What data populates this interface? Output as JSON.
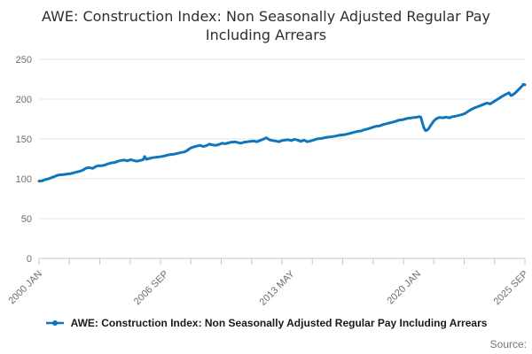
{
  "title": "AWE: Construction Index: Non Seasonally Adjusted Regular Pay Including Arrears",
  "legend": {
    "label": "AWE: Construction Index: Non Seasonally Adjusted Regular Pay Including Arrears"
  },
  "source_label": "Source:",
  "colors": {
    "series_blue": "#1175bc",
    "gridline": "#e6e6e6",
    "axis": "#bcc9d9",
    "tick_text": "#6e6e6e"
  },
  "chart_data": {
    "type": "line",
    "title": "AWE: Construction Index: Non Seasonally Adjusted Regular Pay Including Arrears",
    "xlabel": "",
    "ylabel": "",
    "ylim": [
      0,
      250
    ],
    "y_ticks": [
      0,
      50,
      100,
      150,
      200,
      250
    ],
    "grid": true,
    "legend_position": "bottom",
    "x_axis": {
      "start": "2000 JAN",
      "end": "2025 SEP",
      "total_months": 308,
      "tick_count": 17,
      "labels": [
        "2000 JAN",
        "2006 SEP",
        "2013 MAY",
        "2020 JAN",
        "2025 SEP"
      ],
      "label_months": [
        0,
        80,
        160,
        240,
        308
      ]
    },
    "series": [
      {
        "name": "AWE: Construction Index: Non Seasonally Adjusted Regular Pay Including Arrears",
        "color": "#1175bc",
        "points_format": "[months_since_2000_jan, index_value]",
        "points": [
          [
            0,
            97
          ],
          [
            2,
            97.5
          ],
          [
            4,
            99
          ],
          [
            6,
            100
          ],
          [
            8,
            101.5
          ],
          [
            10,
            103
          ],
          [
            12,
            104.5
          ],
          [
            14,
            105
          ],
          [
            16,
            105.5
          ],
          [
            18,
            106
          ],
          [
            20,
            106.5
          ],
          [
            22,
            107.5
          ],
          [
            24,
            108.5
          ],
          [
            26,
            109.5
          ],
          [
            28,
            111
          ],
          [
            30,
            113.5
          ],
          [
            32,
            114
          ],
          [
            34,
            113
          ],
          [
            36,
            115.5
          ],
          [
            38,
            116.5
          ],
          [
            40,
            116.5
          ],
          [
            42,
            117.5
          ],
          [
            44,
            119
          ],
          [
            46,
            120
          ],
          [
            48,
            120.5
          ],
          [
            50,
            122
          ],
          [
            52,
            123
          ],
          [
            54,
            123.5
          ],
          [
            56,
            122.5
          ],
          [
            58,
            124
          ],
          [
            60,
            123
          ],
          [
            62,
            122
          ],
          [
            64,
            123
          ],
          [
            66,
            124
          ],
          [
            67,
            128
          ],
          [
            68,
            124.5
          ],
          [
            70,
            125.5
          ],
          [
            72,
            126.5
          ],
          [
            74,
            127
          ],
          [
            76,
            127.5
          ],
          [
            78,
            128
          ],
          [
            80,
            129
          ],
          [
            82,
            130
          ],
          [
            84,
            130.5
          ],
          [
            86,
            131
          ],
          [
            88,
            132
          ],
          [
            90,
            133
          ],
          [
            92,
            133.5
          ],
          [
            94,
            135.5
          ],
          [
            96,
            138.5
          ],
          [
            98,
            140
          ],
          [
            100,
            141
          ],
          [
            102,
            142
          ],
          [
            104,
            140.5
          ],
          [
            106,
            141.5
          ],
          [
            108,
            143.5
          ],
          [
            110,
            142.5
          ],
          [
            112,
            142
          ],
          [
            114,
            143
          ],
          [
            116,
            144.5
          ],
          [
            118,
            144
          ],
          [
            120,
            145
          ],
          [
            122,
            146
          ],
          [
            124,
            146.5
          ],
          [
            126,
            145.5
          ],
          [
            128,
            144.5
          ],
          [
            130,
            146
          ],
          [
            132,
            146.5
          ],
          [
            134,
            147
          ],
          [
            136,
            147.5
          ],
          [
            138,
            146.5
          ],
          [
            140,
            148
          ],
          [
            142,
            149.5
          ],
          [
            144,
            151.5
          ],
          [
            146,
            149
          ],
          [
            148,
            148
          ],
          [
            150,
            147.5
          ],
          [
            152,
            146.5
          ],
          [
            154,
            148
          ],
          [
            156,
            148.5
          ],
          [
            158,
            149
          ],
          [
            160,
            148
          ],
          [
            162,
            149.5
          ],
          [
            164,
            148.5
          ],
          [
            166,
            147
          ],
          [
            168,
            148.5
          ],
          [
            170,
            146.5
          ],
          [
            172,
            147.5
          ],
          [
            174,
            148.5
          ],
          [
            176,
            150
          ],
          [
            178,
            150.5
          ],
          [
            180,
            151
          ],
          [
            182,
            152
          ],
          [
            184,
            152.5
          ],
          [
            186,
            153
          ],
          [
            188,
            153.5
          ],
          [
            190,
            154.5
          ],
          [
            192,
            155
          ],
          [
            194,
            155.5
          ],
          [
            196,
            156.5
          ],
          [
            198,
            157.5
          ],
          [
            200,
            158.5
          ],
          [
            202,
            159.5
          ],
          [
            204,
            160
          ],
          [
            206,
            161.5
          ],
          [
            208,
            162.5
          ],
          [
            210,
            163.5
          ],
          [
            212,
            165
          ],
          [
            214,
            166
          ],
          [
            216,
            166.5
          ],
          [
            218,
            168
          ],
          [
            220,
            169
          ],
          [
            222,
            170
          ],
          [
            224,
            171
          ],
          [
            226,
            172
          ],
          [
            228,
            173.5
          ],
          [
            230,
            174
          ],
          [
            232,
            175
          ],
          [
            234,
            176
          ],
          [
            236,
            176.5
          ],
          [
            238,
            177
          ],
          [
            240,
            177.5
          ],
          [
            241,
            178
          ],
          [
            242,
            177.5
          ],
          [
            243,
            170
          ],
          [
            244,
            164
          ],
          [
            245,
            160.5
          ],
          [
            246,
            161
          ],
          [
            247,
            163
          ],
          [
            248,
            166
          ],
          [
            249,
            169
          ],
          [
            250,
            172
          ],
          [
            251,
            174
          ],
          [
            252,
            175.5
          ],
          [
            253,
            176.5
          ],
          [
            254,
            177
          ],
          [
            256,
            176.5
          ],
          [
            258,
            177.5
          ],
          [
            260,
            176.5
          ],
          [
            262,
            178
          ],
          [
            264,
            178.5
          ],
          [
            266,
            179.5
          ],
          [
            268,
            180.5
          ],
          [
            270,
            182
          ],
          [
            272,
            184.5
          ],
          [
            274,
            187
          ],
          [
            276,
            189
          ],
          [
            278,
            190.5
          ],
          [
            280,
            192
          ],
          [
            282,
            193.5
          ],
          [
            284,
            195
          ],
          [
            286,
            194
          ],
          [
            288,
            196.5
          ],
          [
            290,
            199
          ],
          [
            292,
            201.5
          ],
          [
            294,
            204
          ],
          [
            296,
            206
          ],
          [
            298,
            208
          ],
          [
            299,
            204.5
          ],
          [
            300,
            205
          ],
          [
            302,
            208
          ],
          [
            304,
            212
          ],
          [
            306,
            216
          ],
          [
            307,
            218.5
          ],
          [
            308,
            218
          ]
        ]
      }
    ]
  }
}
